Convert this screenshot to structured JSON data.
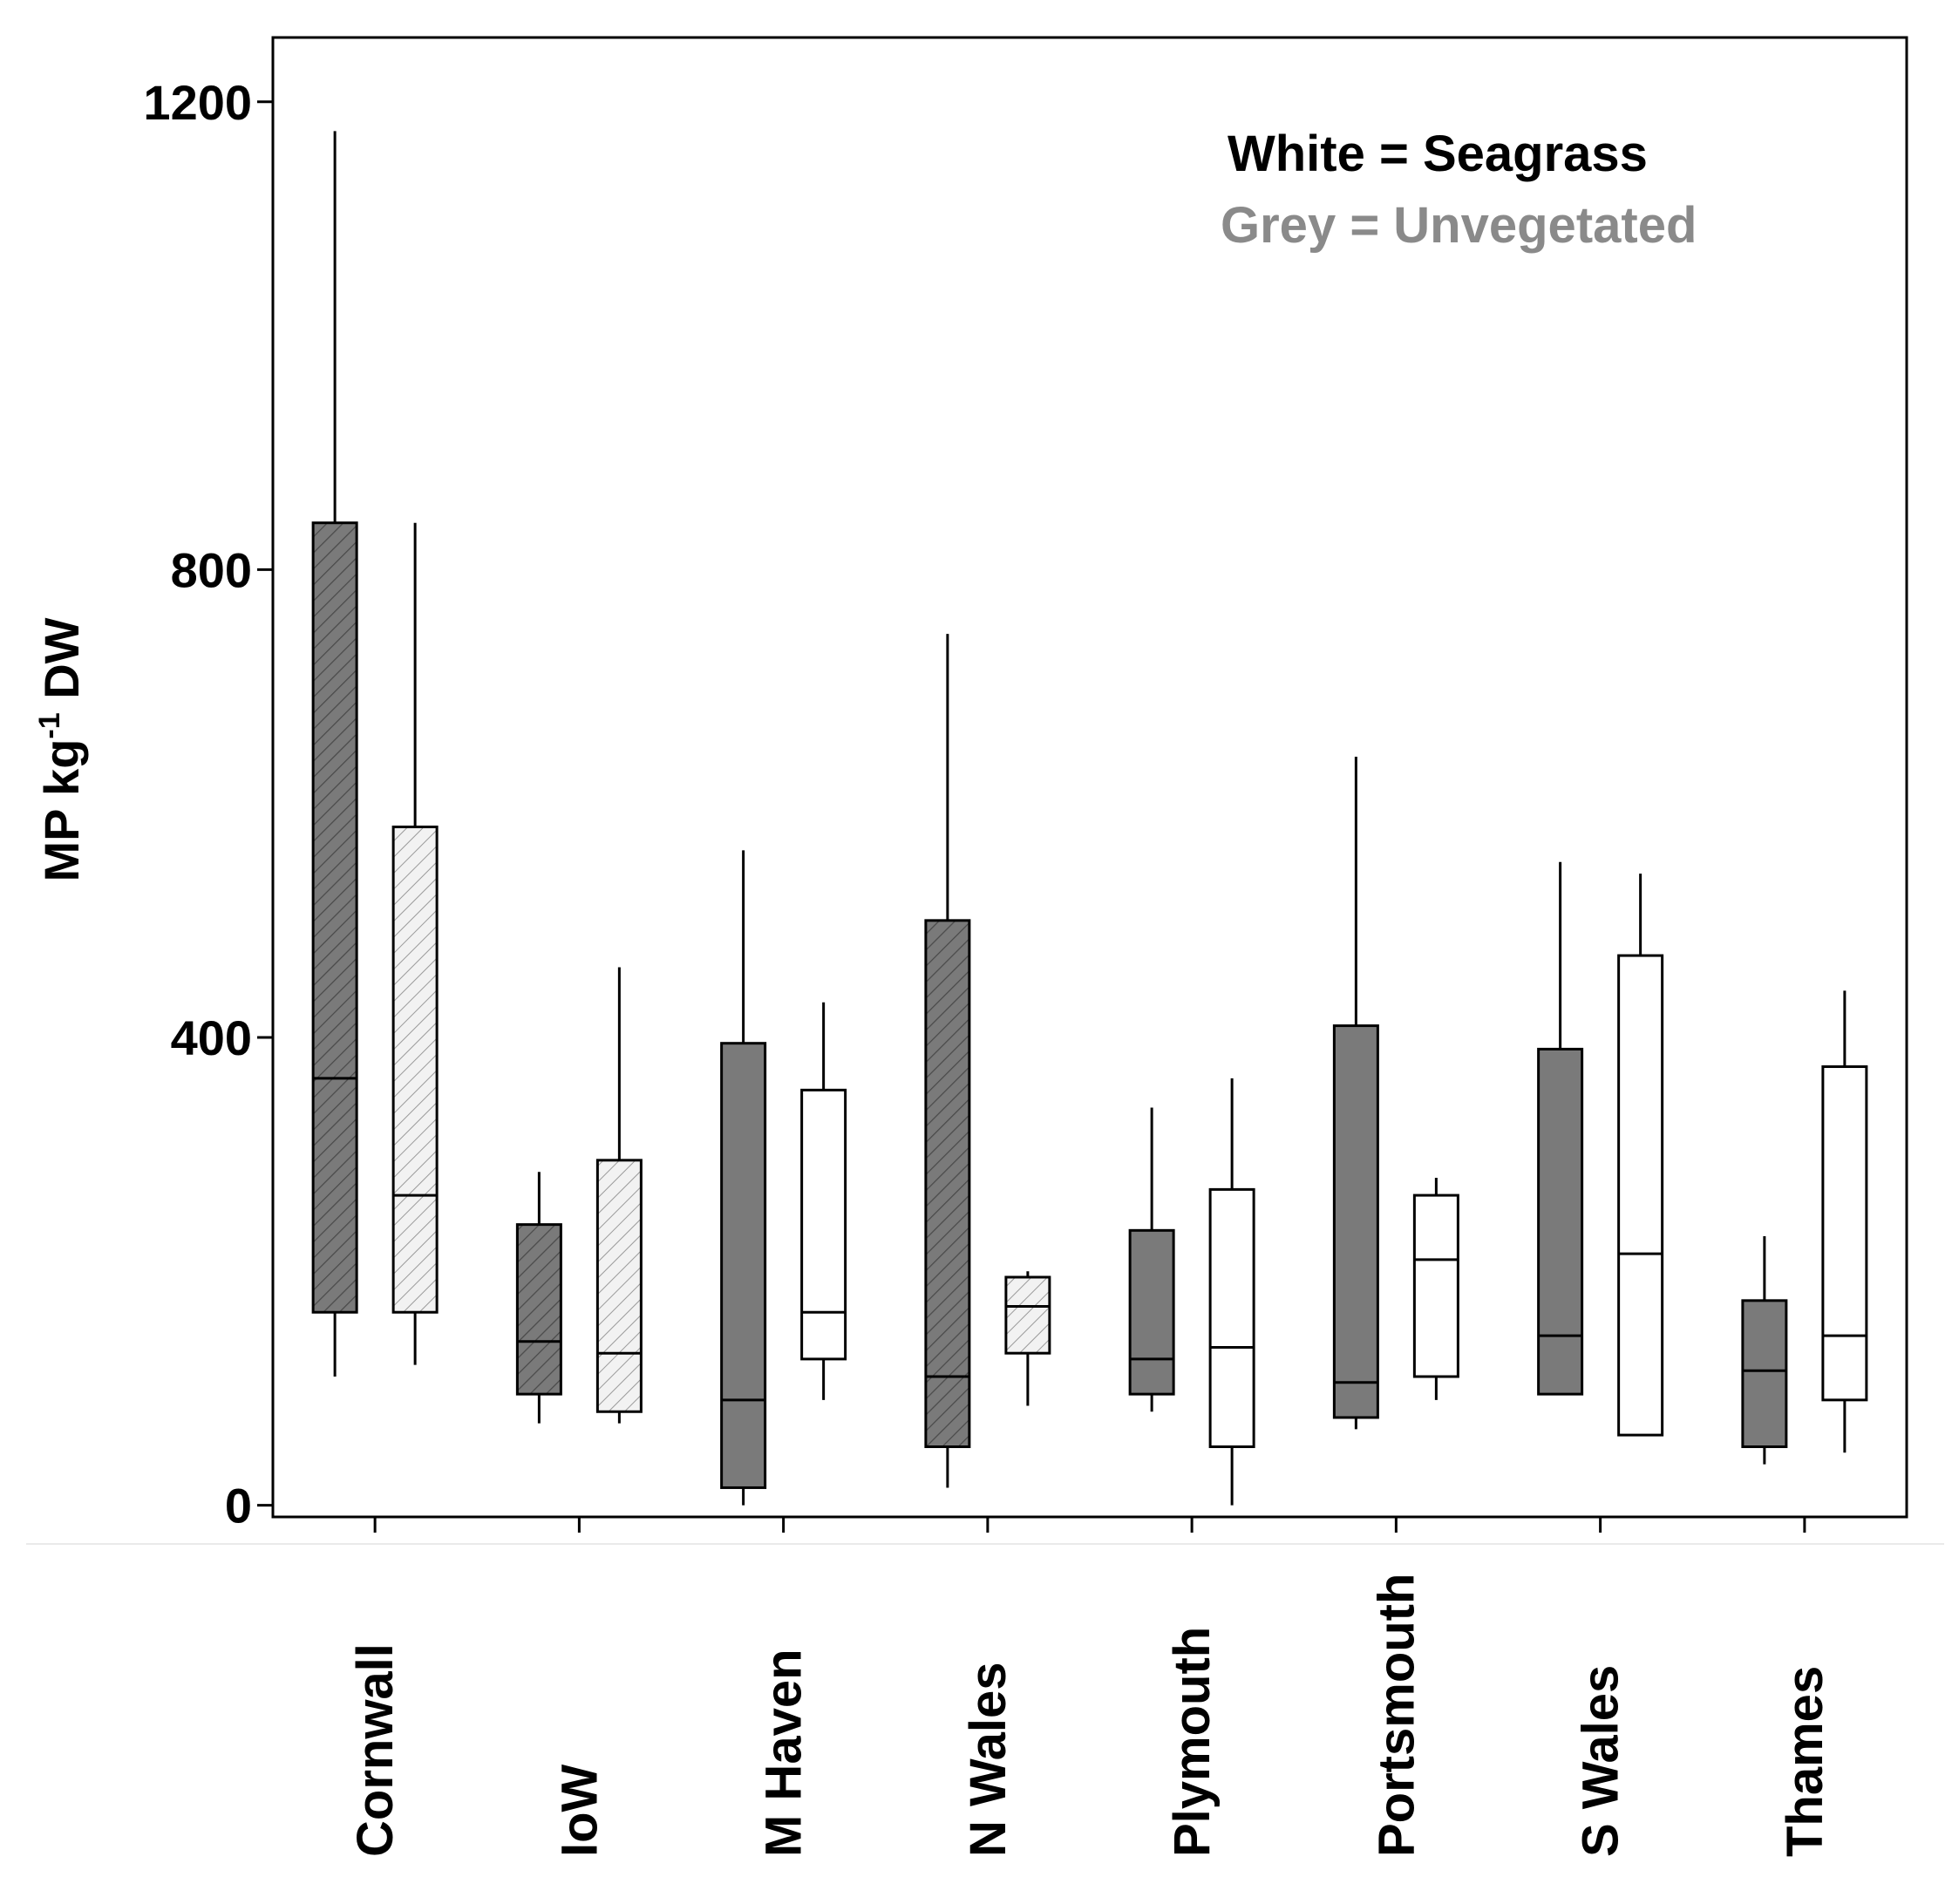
{
  "chart_data": {
    "type": "boxplot",
    "title": "",
    "xlabel": "",
    "ylabel": {
      "prefix": "MP kg",
      "superscript": "-1",
      "suffix": " DW"
    },
    "ylim": [
      -10,
      1255
    ],
    "yticks": [
      0,
      400,
      800,
      1200
    ],
    "ytick_labels": [
      "0",
      "400",
      "800",
      "1200"
    ],
    "grid": false,
    "legend": {
      "position": "top-right",
      "entries": [
        {
          "text": "White = Seagrass",
          "color": "#000000"
        },
        {
          "text": "Grey = Unvegetated",
          "color": "#8a8a8a"
        }
      ]
    },
    "categories": [
      "Cornwall",
      "IoW",
      "M Haven",
      "N Wales",
      "Plymouth",
      "Portsmouth",
      "S Wales",
      "Thames"
    ],
    "series": [
      {
        "name": "Unvegetated",
        "fill": "#7a7a7a",
        "data": [
          {
            "min": 110,
            "q1": 165,
            "median": 365,
            "q3": 840,
            "max": 1175,
            "hatched": true
          },
          {
            "min": 70,
            "q1": 95,
            "median": 140,
            "q3": 240,
            "max": 285,
            "hatched": true
          },
          {
            "min": 0,
            "q1": 15,
            "median": 90,
            "q3": 395,
            "max": 560,
            "hatched": false
          },
          {
            "min": 15,
            "q1": 50,
            "median": 110,
            "q3": 500,
            "max": 745,
            "hatched": true
          },
          {
            "min": 80,
            "q1": 95,
            "median": 125,
            "q3": 235,
            "max": 340,
            "hatched": false
          },
          {
            "min": 65,
            "q1": 75,
            "median": 105,
            "q3": 410,
            "max": 640,
            "hatched": false
          },
          {
            "min": 95,
            "q1": 95,
            "median": 145,
            "q3": 390,
            "max": 550,
            "hatched": false
          },
          {
            "min": 35,
            "q1": 50,
            "median": 115,
            "q3": 175,
            "max": 230,
            "hatched": false
          }
        ]
      },
      {
        "name": "Seagrass",
        "fill": "#ffffff",
        "data": [
          {
            "min": 120,
            "q1": 165,
            "median": 265,
            "q3": 580,
            "max": 840,
            "hatched": true
          },
          {
            "min": 70,
            "q1": 80,
            "median": 130,
            "q3": 295,
            "max": 460,
            "hatched": true
          },
          {
            "min": 90,
            "q1": 125,
            "median": 165,
            "q3": 355,
            "max": 430,
            "hatched": false
          },
          {
            "min": 85,
            "q1": 130,
            "median": 170,
            "q3": 195,
            "max": 200,
            "hatched": true
          },
          {
            "min": 0,
            "q1": 50,
            "median": 135,
            "q3": 270,
            "max": 365,
            "hatched": false
          },
          {
            "min": 90,
            "q1": 110,
            "median": 210,
            "q3": 265,
            "max": 280,
            "hatched": false
          },
          {
            "min": 60,
            "q1": 60,
            "median": 215,
            "q3": 470,
            "max": 540,
            "hatched": false
          },
          {
            "min": 45,
            "q1": 90,
            "median": 145,
            "q3": 375,
            "max": 440,
            "hatched": false
          }
        ]
      }
    ]
  }
}
